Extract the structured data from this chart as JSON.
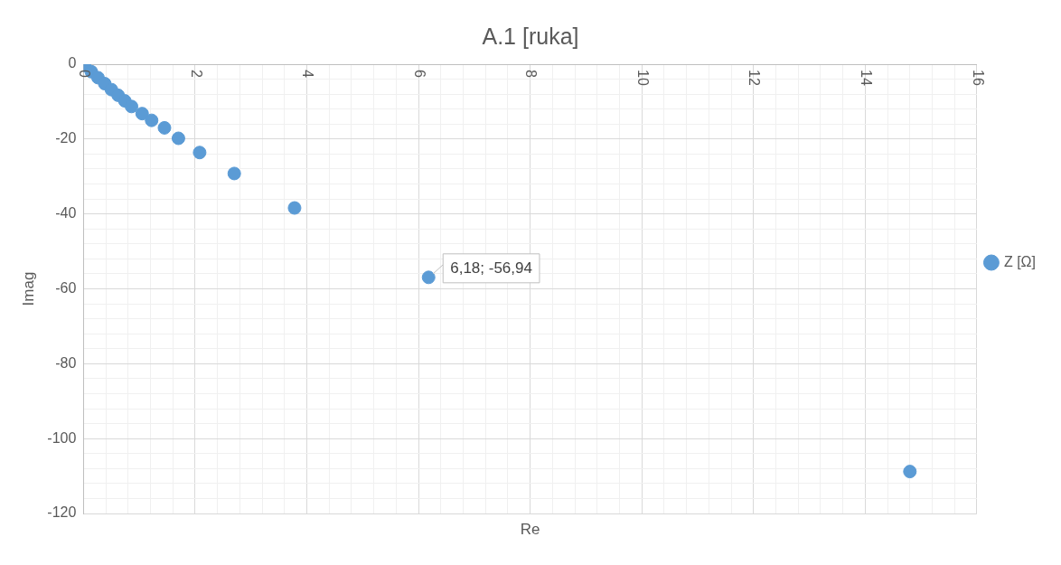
{
  "chart_data": {
    "type": "scatter",
    "title": "A.1 [ruka]",
    "xlabel": "Re",
    "ylabel": "Imag",
    "series": [
      {
        "name": "Z [Ω]",
        "color": "#5b9bd5",
        "marker": "circle",
        "x": [
          0.02,
          0.14,
          0.26,
          0.38,
          0.5,
          0.62,
          0.74,
          0.86,
          1.05,
          1.22,
          1.45,
          1.7,
          2.08,
          2.7,
          3.78,
          6.18,
          14.8
        ],
        "values": [
          -0.4,
          -2,
          -3.6,
          -5.2,
          -6.8,
          -8.3,
          -9.8,
          -11.3,
          -13.2,
          -15,
          -17,
          -19.8,
          -23.6,
          -29.2,
          -38.4,
          -56.94,
          -108.8
        ],
        "value_labels": [
          null,
          null,
          null,
          null,
          null,
          null,
          null,
          null,
          null,
          null,
          null,
          null,
          null,
          null,
          null,
          "6,18; -56,94",
          null
        ]
      }
    ],
    "xlim": [
      0,
      16
    ],
    "xticks": [
      0,
      {
        "value": 0.4,
        "label": null
      },
      {
        "value": 0.8,
        "label": null
      },
      {
        "value": 1.2,
        "label": null
      },
      {
        "value": 1.6,
        "label": null
      },
      2,
      {
        "value": 2.4,
        "label": null
      },
      {
        "value": 2.8,
        "label": null
      },
      {
        "value": 3.2,
        "label": null
      },
      {
        "value": 3.6,
        "label": null
      },
      4,
      {
        "value": 4.4,
        "label": null
      },
      {
        "value": 4.8,
        "label": null
      },
      {
        "value": 5.2,
        "label": null
      },
      {
        "value": 5.6,
        "label": null
      },
      6,
      {
        "value": 6.4,
        "label": null
      },
      {
        "value": 6.8,
        "label": null
      },
      {
        "value": 7.2,
        "label": null
      },
      {
        "value": 7.6,
        "label": null
      },
      8,
      {
        "value": 8.4,
        "label": null
      },
      {
        "value": 8.8,
        "label": null
      },
      {
        "value": 9.2,
        "label": null
      },
      {
        "value": 9.6,
        "label": null
      },
      10,
      {
        "value": 10.4,
        "label": null
      },
      {
        "value": 10.8,
        "label": null
      },
      {
        "value": 11.2,
        "label": null
      },
      {
        "value": 11.6,
        "label": null
      },
      12,
      {
        "value": 12.4,
        "label": null
      },
      {
        "value": 12.8,
        "label": null
      },
      {
        "value": 13.2,
        "label": null
      },
      {
        "value": 13.6,
        "label": null
      },
      14,
      {
        "value": 14.4,
        "label": null
      },
      {
        "value": 14.8,
        "label": null
      },
      {
        "value": 15.2,
        "label": null
      },
      {
        "value": 15.6,
        "label": null
      },
      16
    ],
    "ylim": [
      -120,
      0
    ],
    "yticks": [
      -120,
      {
        "value": -116,
        "label": null
      },
      {
        "value": -112,
        "label": null
      },
      {
        "value": -108,
        "label": null
      },
      {
        "value": -104,
        "label": null
      },
      -100,
      {
        "value": -96,
        "label": null
      },
      {
        "value": -92,
        "label": null
      },
      {
        "value": -88,
        "label": null
      },
      {
        "value": -84,
        "label": null
      },
      -80,
      {
        "value": -76,
        "label": null
      },
      {
        "value": -72,
        "label": null
      },
      {
        "value": -68,
        "label": null
      },
      {
        "value": -64,
        "label": null
      },
      -60,
      {
        "value": -56,
        "label": null
      },
      {
        "value": -52,
        "label": null
      },
      {
        "value": -48,
        "label": null
      },
      {
        "value": -44,
        "label": null
      },
      -40,
      {
        "value": -36,
        "label": null
      },
      {
        "value": -32,
        "label": null
      },
      {
        "value": -28,
        "label": null
      },
      {
        "value": -24,
        "label": null
      },
      -20,
      {
        "value": -16,
        "label": null
      },
      {
        "value": -12,
        "label": null
      },
      {
        "value": -8,
        "label": null
      },
      {
        "value": -4,
        "label": null
      },
      0
    ],
    "grid": true,
    "legend": "right"
  }
}
